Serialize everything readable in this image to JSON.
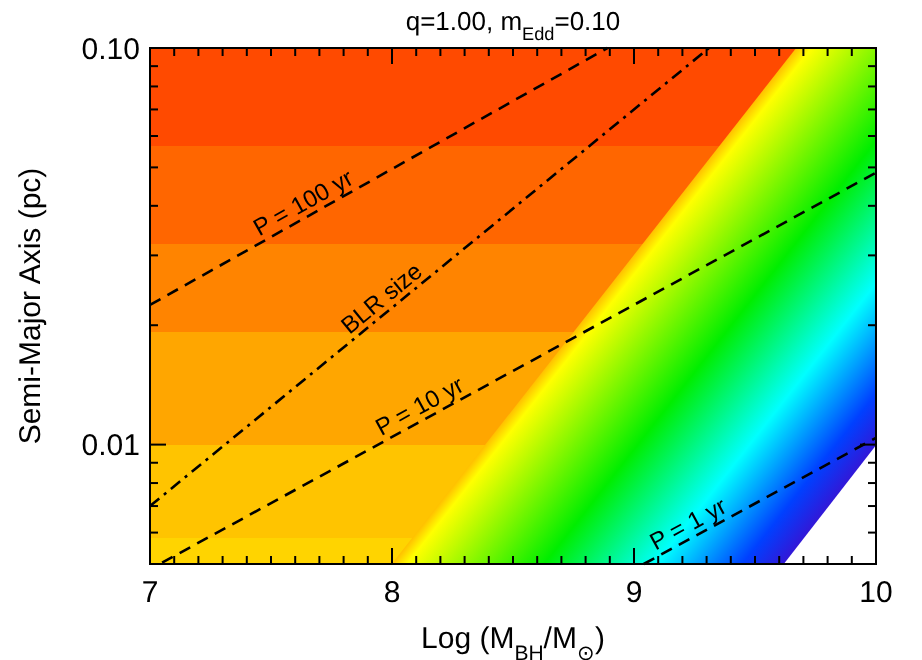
{
  "chart_data": {
    "type": "line",
    "title": "q=1.00, m$_{Edd}$=0.10",
    "xlabel": "Log (M$_{BH}$/M$_{⊙}$)",
    "ylabel": "Semi-Major Axis (pc)",
    "log": "y",
    "grid": false,
    "legend": false,
    "marker": "none",
    "xlim": [
      7,
      10
    ],
    "ylim": [
      0.005,
      0.1
    ],
    "xticks": [
      7,
      {
        "value": 7.1,
        "label": null
      },
      {
        "value": 7.2,
        "label": null
      },
      {
        "value": 7.3,
        "label": null
      },
      {
        "value": 7.4,
        "label": null
      },
      {
        "value": 7.5,
        "label": null
      },
      {
        "value": 7.6,
        "label": null
      },
      {
        "value": 7.7,
        "label": null
      },
      {
        "value": 7.8,
        "label": null
      },
      {
        "value": 7.9,
        "label": null
      },
      8,
      {
        "value": 8.1,
        "label": null
      },
      {
        "value": 8.2,
        "label": null
      },
      {
        "value": 8.3,
        "label": null
      },
      {
        "value": 8.4,
        "label": null
      },
      {
        "value": 8.5,
        "label": null
      },
      {
        "value": 8.6,
        "label": null
      },
      {
        "value": 8.7,
        "label": null
      },
      {
        "value": 8.8,
        "label": null
      },
      {
        "value": 8.9,
        "label": null
      },
      9,
      {
        "value": 9.1,
        "label": null
      },
      {
        "value": 9.2,
        "label": null
      },
      {
        "value": 9.3,
        "label": null
      },
      {
        "value": 9.4,
        "label": null
      },
      {
        "value": 9.5,
        "label": null
      },
      {
        "value": 9.6,
        "label": null
      },
      {
        "value": 9.7,
        "label": null
      },
      {
        "value": 9.8,
        "label": null
      },
      {
        "value": 9.9,
        "label": null
      },
      10
    ],
    "yticks": [
      {
        "value": 0.005,
        "label": null
      },
      {
        "value": 0.006,
        "label": null
      },
      {
        "value": 0.007,
        "label": null
      },
      {
        "value": 0.008,
        "label": null
      },
      {
        "value": 0.009,
        "label": null
      },
      {
        "value": 0.01,
        "label": "0.01"
      },
      {
        "value": 0.02,
        "label": null
      },
      {
        "value": 0.03,
        "label": null
      },
      {
        "value": 0.04,
        "label": null
      },
      {
        "value": 0.05,
        "label": null
      },
      {
        "value": 0.06,
        "label": null
      },
      {
        "value": 0.07,
        "label": null
      },
      {
        "value": 0.08,
        "label": null
      },
      {
        "value": 0.09,
        "label": null
      },
      {
        "value": 0.1,
        "label": "0.10"
      }
    ],
    "series": [
      {
        "name": "P = 100 yr",
        "color": "#000000",
        "line_style": "dashed",
        "x": [
          7,
          8.89
        ],
        "values": [
          0.0225,
          0.1
        ]
      },
      {
        "name": "BLR size",
        "color": "#000000",
        "line_style": "dashdot",
        "x": [
          7,
          9.31
        ],
        "values": [
          0.007,
          0.1
        ]
      },
      {
        "name": "P = 10 yr",
        "color": "#000000",
        "line_style": "dashed",
        "x": [
          7.05,
          10
        ],
        "values": [
          0.00504,
          0.0485
        ]
      },
      {
        "name": "P = 1 yr",
        "color": "#000000",
        "line_style": "dashed",
        "x": [
          9.04,
          10
        ],
        "values": [
          0.005,
          0.0104
        ]
      }
    ]
  }
}
